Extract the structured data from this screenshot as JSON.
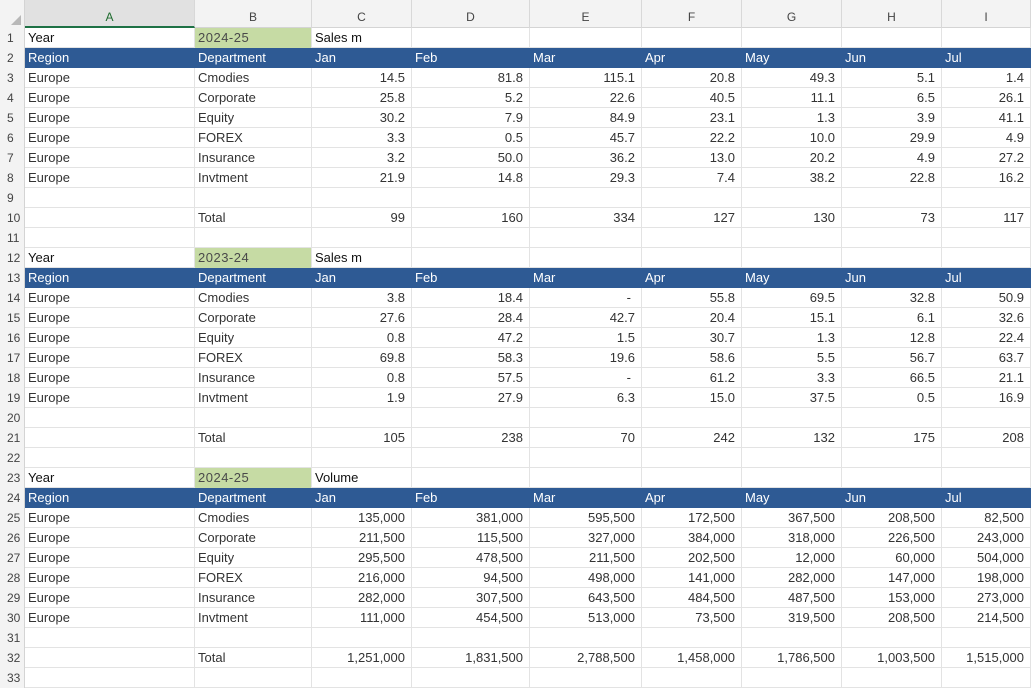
{
  "columns": [
    "A",
    "B",
    "C",
    "D",
    "E",
    "F",
    "G",
    "H",
    "I"
  ],
  "selected_column": "A",
  "row_numbers": [
    "1",
    "2",
    "3",
    "4",
    "5",
    "6",
    "7",
    "8",
    "9",
    "10",
    "11",
    "12",
    "13",
    "14",
    "15",
    "16",
    "17",
    "18",
    "19",
    "20",
    "21",
    "22",
    "23",
    "24",
    "25",
    "26",
    "27",
    "28",
    "29",
    "30",
    "31",
    "32",
    "33"
  ],
  "month_headers": [
    "Jan",
    "Feb",
    "Mar",
    "Apr",
    "May",
    "Jun",
    "Jul"
  ],
  "header_labels": {
    "region": "Region",
    "department": "Department"
  },
  "year_label": "Year",
  "total_label": "Total",
  "colors": {
    "header_bg": "#2e5a94",
    "year_highlight": "#c6dba4"
  },
  "tables": [
    {
      "year": "2024-25",
      "metric": "Sales m",
      "rows": [
        {
          "region": "Europe",
          "department": "Cmodies",
          "values": [
            "14.5",
            "81.8",
            "115.1",
            "20.8",
            "49.3",
            "5.1",
            "1.4"
          ]
        },
        {
          "region": "Europe",
          "department": "Corporate",
          "values": [
            "25.8",
            "5.2",
            "22.6",
            "40.5",
            "11.1",
            "6.5",
            "26.1"
          ]
        },
        {
          "region": "Europe",
          "department": "Equity",
          "values": [
            "30.2",
            "7.9",
            "84.9",
            "23.1",
            "1.3",
            "3.9",
            "41.1"
          ]
        },
        {
          "region": "Europe",
          "department": "FOREX",
          "values": [
            "3.3",
            "0.5",
            "45.7",
            "22.2",
            "10.0",
            "29.9",
            "4.9"
          ]
        },
        {
          "region": "Europe",
          "department": "Insurance",
          "values": [
            "3.2",
            "50.0",
            "36.2",
            "13.0",
            "20.2",
            "4.9",
            "27.2"
          ]
        },
        {
          "region": "Europe",
          "department": "Invtment",
          "values": [
            "21.9",
            "14.8",
            "29.3",
            "7.4",
            "38.2",
            "22.8",
            "16.2"
          ]
        }
      ],
      "totals": [
        "99",
        "160",
        "334",
        "127",
        "130",
        "73",
        "117"
      ]
    },
    {
      "year": "2023-24",
      "metric": "Sales m",
      "rows": [
        {
          "region": "Europe",
          "department": "Cmodies",
          "values": [
            "3.8",
            "18.4",
            "-",
            "55.8",
            "69.5",
            "32.8",
            "50.9"
          ]
        },
        {
          "region": "Europe",
          "department": "Corporate",
          "values": [
            "27.6",
            "28.4",
            "42.7",
            "20.4",
            "15.1",
            "6.1",
            "32.6"
          ]
        },
        {
          "region": "Europe",
          "department": "Equity",
          "values": [
            "0.8",
            "47.2",
            "1.5",
            "30.7",
            "1.3",
            "12.8",
            "22.4"
          ]
        },
        {
          "region": "Europe",
          "department": "FOREX",
          "values": [
            "69.8",
            "58.3",
            "19.6",
            "58.6",
            "5.5",
            "56.7",
            "63.7"
          ]
        },
        {
          "region": "Europe",
          "department": "Insurance",
          "values": [
            "0.8",
            "57.5",
            "-",
            "61.2",
            "3.3",
            "66.5",
            "21.1"
          ]
        },
        {
          "region": "Europe",
          "department": "Invtment",
          "values": [
            "1.9",
            "27.9",
            "6.3",
            "15.0",
            "37.5",
            "0.5",
            "16.9"
          ]
        }
      ],
      "totals": [
        "105",
        "238",
        "70",
        "242",
        "132",
        "175",
        "208"
      ]
    },
    {
      "year": "2024-25",
      "metric": "Volume",
      "rows": [
        {
          "region": "Europe",
          "department": "Cmodies",
          "values": [
            "135,000",
            "381,000",
            "595,500",
            "172,500",
            "367,500",
            "208,500",
            "82,500"
          ]
        },
        {
          "region": "Europe",
          "department": "Corporate",
          "values": [
            "211,500",
            "115,500",
            "327,000",
            "384,000",
            "318,000",
            "226,500",
            "243,000"
          ]
        },
        {
          "region": "Europe",
          "department": "Equity",
          "values": [
            "295,500",
            "478,500",
            "211,500",
            "202,500",
            "12,000",
            "60,000",
            "504,000"
          ]
        },
        {
          "region": "Europe",
          "department": "FOREX",
          "values": [
            "216,000",
            "94,500",
            "498,000",
            "141,000",
            "282,000",
            "147,000",
            "198,000"
          ]
        },
        {
          "region": "Europe",
          "department": "Insurance",
          "values": [
            "282,000",
            "307,500",
            "643,500",
            "484,500",
            "487,500",
            "153,000",
            "273,000"
          ]
        },
        {
          "region": "Europe",
          "department": "Invtment",
          "values": [
            "111,000",
            "454,500",
            "513,000",
            "73,500",
            "319,500",
            "208,500",
            "214,500"
          ]
        }
      ],
      "totals": [
        "1,251,000",
        "1,831,500",
        "2,788,500",
        "1,458,000",
        "1,786,500",
        "1,003,500",
        "1,515,000"
      ]
    }
  ]
}
